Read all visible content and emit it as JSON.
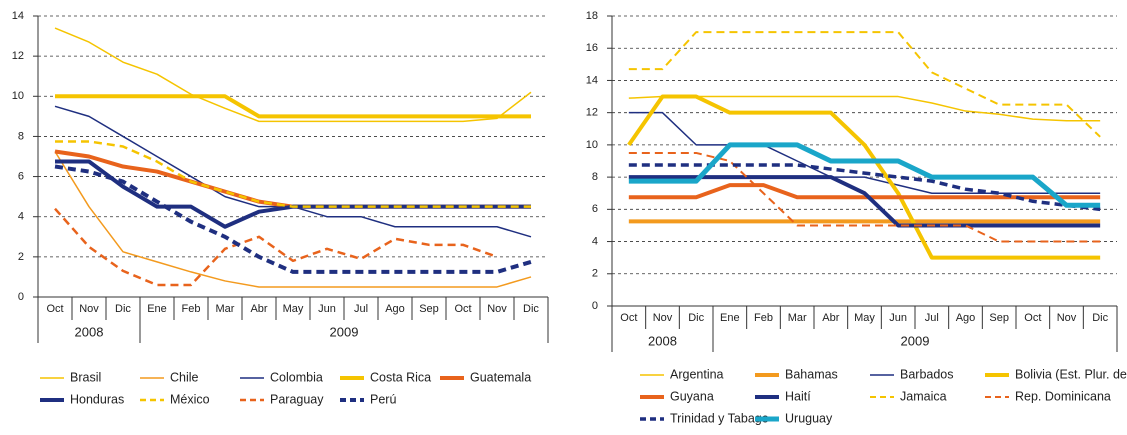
{
  "chart_data": [
    {
      "type": "line",
      "ylim": [
        0,
        14
      ],
      "yticks": [
        0,
        2,
        4,
        6,
        8,
        10,
        12,
        14
      ],
      "grid": true,
      "categories": [
        "Oct",
        "Nov",
        "Dic",
        "Ene",
        "Feb",
        "Mar",
        "Abr",
        "May",
        "Jun",
        "Jul",
        "Ago",
        "Sep",
        "Oct",
        "Nov",
        "Dic"
      ],
      "year_groups": [
        {
          "label": "2008",
          "span": 3
        },
        {
          "label": "2009",
          "span": 12
        }
      ],
      "series": [
        {
          "name": "Brasil",
          "color": "#f5c400",
          "width": 1.5,
          "dashed": false,
          "values": [
            13.4,
            12.7,
            11.7,
            11.1,
            10.1,
            9.4,
            8.75,
            8.75,
            8.75,
            8.75,
            8.75,
            8.75,
            8.75,
            8.9,
            10.2
          ]
        },
        {
          "name": "Chile",
          "color": "#f39a1e",
          "width": 1.5,
          "dashed": false,
          "values": [
            7.25,
            4.5,
            2.25,
            1.75,
            1.25,
            0.8,
            0.5,
            0.5,
            0.5,
            0.5,
            0.5,
            0.5,
            0.5,
            0.5,
            1.0
          ]
        },
        {
          "name": "Colombia",
          "color": "#1f2f80",
          "width": 1.5,
          "dashed": false,
          "values": [
            9.5,
            9.0,
            8.0,
            7.0,
            6.0,
            5.0,
            4.5,
            4.5,
            4.0,
            4.0,
            3.5,
            3.5,
            3.5,
            3.5,
            3.0
          ]
        },
        {
          "name": "Costa Rica",
          "color": "#f5c400",
          "width": 4,
          "dashed": false,
          "values": [
            10,
            10,
            10,
            10,
            10,
            10,
            9,
            9,
            9,
            9,
            9,
            9,
            9,
            9,
            9
          ]
        },
        {
          "name": "Guatemala",
          "color": "#e8631c",
          "width": 4,
          "dashed": false,
          "values": [
            7.25,
            7.0,
            6.5,
            6.25,
            5.75,
            5.25,
            4.75,
            4.5,
            4.5,
            4.5,
            4.5,
            4.5,
            4.5,
            4.5,
            4.5
          ]
        },
        {
          "name": "Honduras",
          "color": "#1f2f80",
          "width": 4,
          "dashed": false,
          "values": [
            6.75,
            6.75,
            5.5,
            4.5,
            4.5,
            3.5,
            4.25,
            4.5,
            4.5,
            4.5,
            4.5,
            4.5,
            4.5,
            4.5,
            4.5
          ]
        },
        {
          "name": "México",
          "color": "#f5c400",
          "width": 2.5,
          "dashed": true,
          "values": [
            7.75,
            7.75,
            7.5,
            6.75,
            5.75,
            5.25,
            4.75,
            4.5,
            4.5,
            4.5,
            4.5,
            4.5,
            4.5,
            4.5,
            4.5
          ]
        },
        {
          "name": "Paraguay",
          "color": "#e8631c",
          "width": 2.5,
          "dashed": true,
          "values": [
            4.4,
            2.5,
            1.3,
            0.6,
            0.6,
            2.4,
            3.0,
            1.8,
            2.4,
            1.9,
            2.9,
            2.6,
            2.6,
            2.0,
            null
          ]
        },
        {
          "name": "Perú",
          "color": "#1f2f80",
          "width": 4,
          "dashed": true,
          "values": [
            6.5,
            6.25,
            5.75,
            4.75,
            3.75,
            3.0,
            2.0,
            1.25,
            1.25,
            1.25,
            1.25,
            1.25,
            1.25,
            1.25,
            1.75
          ]
        }
      ]
    },
    {
      "type": "line",
      "ylim": [
        0,
        18
      ],
      "yticks": [
        0,
        2,
        4,
        6,
        8,
        10,
        12,
        14,
        16,
        18
      ],
      "grid": true,
      "categories": [
        "Oct",
        "Nov",
        "Dic",
        "Ene",
        "Feb",
        "Mar",
        "Abr",
        "May",
        "Jun",
        "Jul",
        "Ago",
        "Sep",
        "Oct",
        "Nov",
        "Dic"
      ],
      "year_groups": [
        {
          "label": "2008",
          "span": 3
        },
        {
          "label": "2009",
          "span": 12
        }
      ],
      "series": [
        {
          "name": "Argentina",
          "color": "#f5c400",
          "width": 1.5,
          "dashed": false,
          "values": [
            12.9,
            13,
            13,
            13,
            13,
            13,
            13,
            13,
            13,
            12.6,
            12.1,
            11.9,
            11.6,
            11.5,
            11.5
          ]
        },
        {
          "name": "Bahamas",
          "color": "#f39a1e",
          "width": 4,
          "dashed": false,
          "values": [
            5.25,
            5.25,
            5.25,
            5.25,
            5.25,
            5.25,
            5.25,
            5.25,
            5.25,
            5.25,
            5.25,
            5.25,
            5.25,
            5.25,
            5.25
          ]
        },
        {
          "name": "Barbados",
          "color": "#1f2f80",
          "width": 1.5,
          "dashed": false,
          "values": [
            12,
            12,
            10,
            10,
            10,
            9,
            8,
            8,
            7.5,
            7,
            7,
            7,
            7,
            7,
            7
          ]
        },
        {
          "name": "Bolivia (Est. Plur. de)",
          "color": "#f5c400",
          "width": 4,
          "dashed": false,
          "values": [
            10,
            13,
            13,
            12,
            12,
            12,
            12,
            10,
            7,
            3,
            3,
            3,
            3,
            3,
            3
          ]
        },
        {
          "name": "Guyana",
          "color": "#e8631c",
          "width": 4,
          "dashed": false,
          "values": [
            6.75,
            6.75,
            6.75,
            7.5,
            7.5,
            6.75,
            6.75,
            6.75,
            6.75,
            6.75,
            6.75,
            6.75,
            6.75,
            6.75,
            6.75
          ]
        },
        {
          "name": "Haití",
          "color": "#1f2f80",
          "width": 4,
          "dashed": false,
          "values": [
            8,
            8,
            8,
            8,
            8,
            8,
            8,
            7,
            5,
            5,
            5,
            5,
            5,
            5,
            5
          ]
        },
        {
          "name": "Jamaica",
          "color": "#f5c400",
          "width": 2,
          "dashed": true,
          "values": [
            14.7,
            14.7,
            17,
            17,
            17,
            17,
            17,
            17,
            17,
            14.5,
            13.5,
            12.5,
            12.5,
            12.5,
            10.5
          ]
        },
        {
          "name": "Rep. Dominicana",
          "color": "#e8631c",
          "width": 2,
          "dashed": true,
          "values": [
            9.5,
            9.5,
            9.5,
            9,
            7,
            5,
            5,
            5,
            5,
            5,
            5,
            4,
            4,
            4,
            4
          ]
        },
        {
          "name": "Trinidad y Tabago",
          "color": "#1f2f80",
          "width": 3.5,
          "dashed": true,
          "values": [
            8.75,
            8.75,
            8.75,
            8.75,
            8.75,
            8.75,
            8.5,
            8.25,
            8,
            7.75,
            7.25,
            7,
            6.5,
            6.25,
            6
          ]
        },
        {
          "name": "Uruguay",
          "color": "#1aa6c9",
          "width": 5,
          "dashed": false,
          "values": [
            7.75,
            7.75,
            7.75,
            10,
            10,
            10,
            9,
            9,
            9,
            8,
            8,
            8,
            8,
            6.25,
            6.25
          ]
        }
      ]
    }
  ]
}
